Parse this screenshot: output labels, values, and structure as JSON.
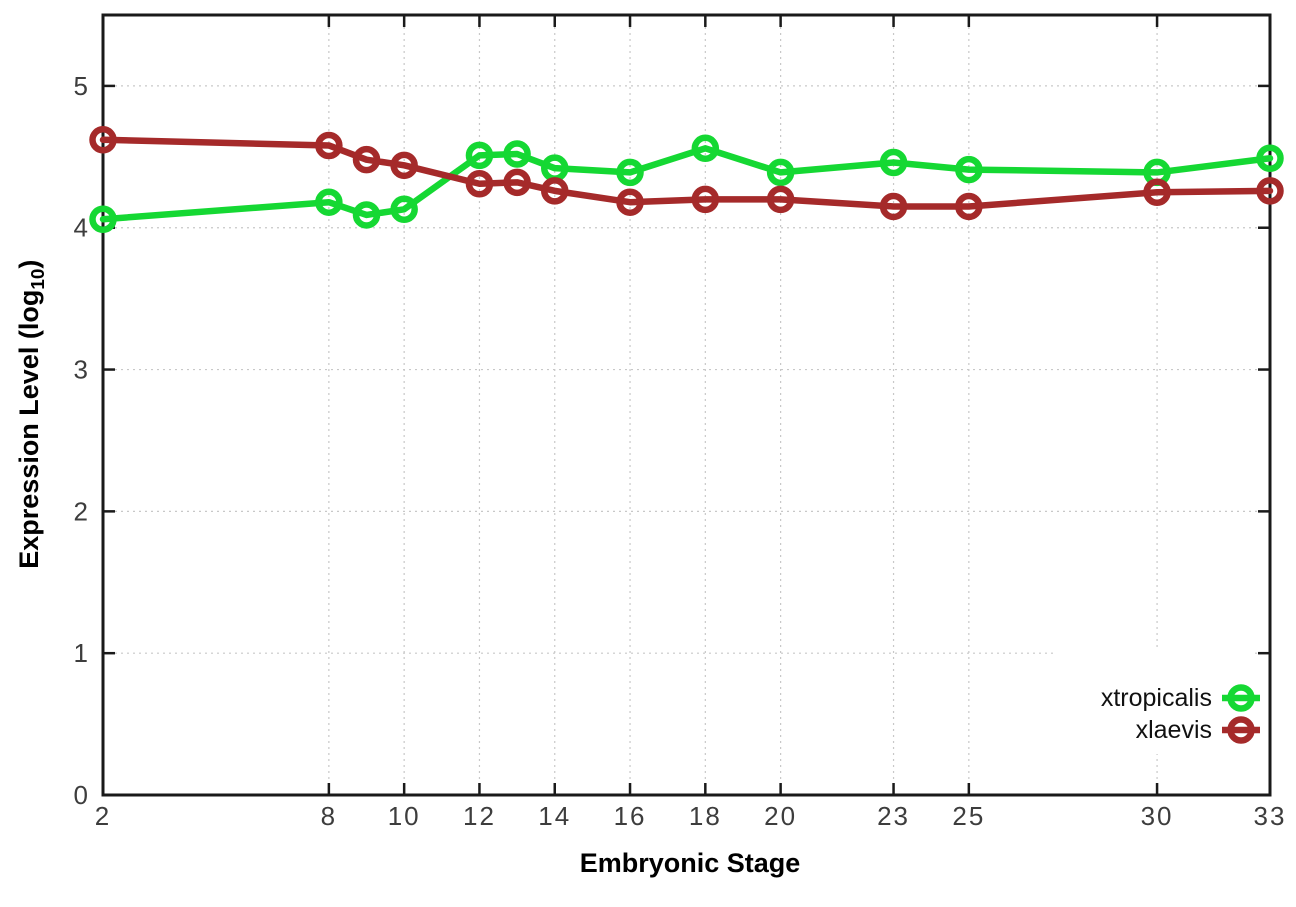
{
  "chart": {
    "y_axis_title_prefix": "Expression Level (log",
    "y_axis_title_sub": "10",
    "y_axis_title_suffix": ")",
    "x_axis_title": "Embryonic Stage",
    "legend": [
      {
        "label": "xtropicalis",
        "color": "#15d833"
      },
      {
        "label": "xlaevis",
        "color": "#a52a2a"
      }
    ]
  },
  "chart_data": {
    "type": "line",
    "title": "",
    "xlabel": "Embryonic Stage",
    "ylabel": "Expression Level (log10)",
    "x": [
      2,
      8,
      9,
      10,
      12,
      13,
      14,
      16,
      18,
      20,
      23,
      25,
      30,
      33
    ],
    "series": [
      {
        "name": "xtropicalis",
        "color": "#15d833",
        "values": [
          4.06,
          4.18,
          4.09,
          4.13,
          4.51,
          4.52,
          4.42,
          4.39,
          4.56,
          4.39,
          4.46,
          4.41,
          4.39,
          4.49
        ]
      },
      {
        "name": "xlaevis",
        "color": "#a52a2a",
        "values": [
          4.62,
          4.58,
          4.48,
          4.44,
          4.31,
          4.32,
          4.26,
          4.18,
          4.2,
          4.2,
          4.15,
          4.15,
          4.25,
          4.26
        ]
      }
    ],
    "x_tick_labels": [
      2,
      8,
      10,
      12,
      14,
      16,
      18,
      20,
      23,
      25,
      30,
      33
    ],
    "y_ticks": [
      0,
      1,
      2,
      3,
      4,
      5
    ],
    "xlim": [
      2,
      33
    ],
    "ylim": [
      0,
      5.5
    ],
    "grid": true,
    "legend_position": "inside-right-bottom"
  },
  "style": {
    "background": "#ffffff",
    "border_color": "#1a1a1a",
    "grid_color": "#c8c8c8",
    "tick_label_color": "#3d3d3d",
    "title_color": "#000000"
  }
}
